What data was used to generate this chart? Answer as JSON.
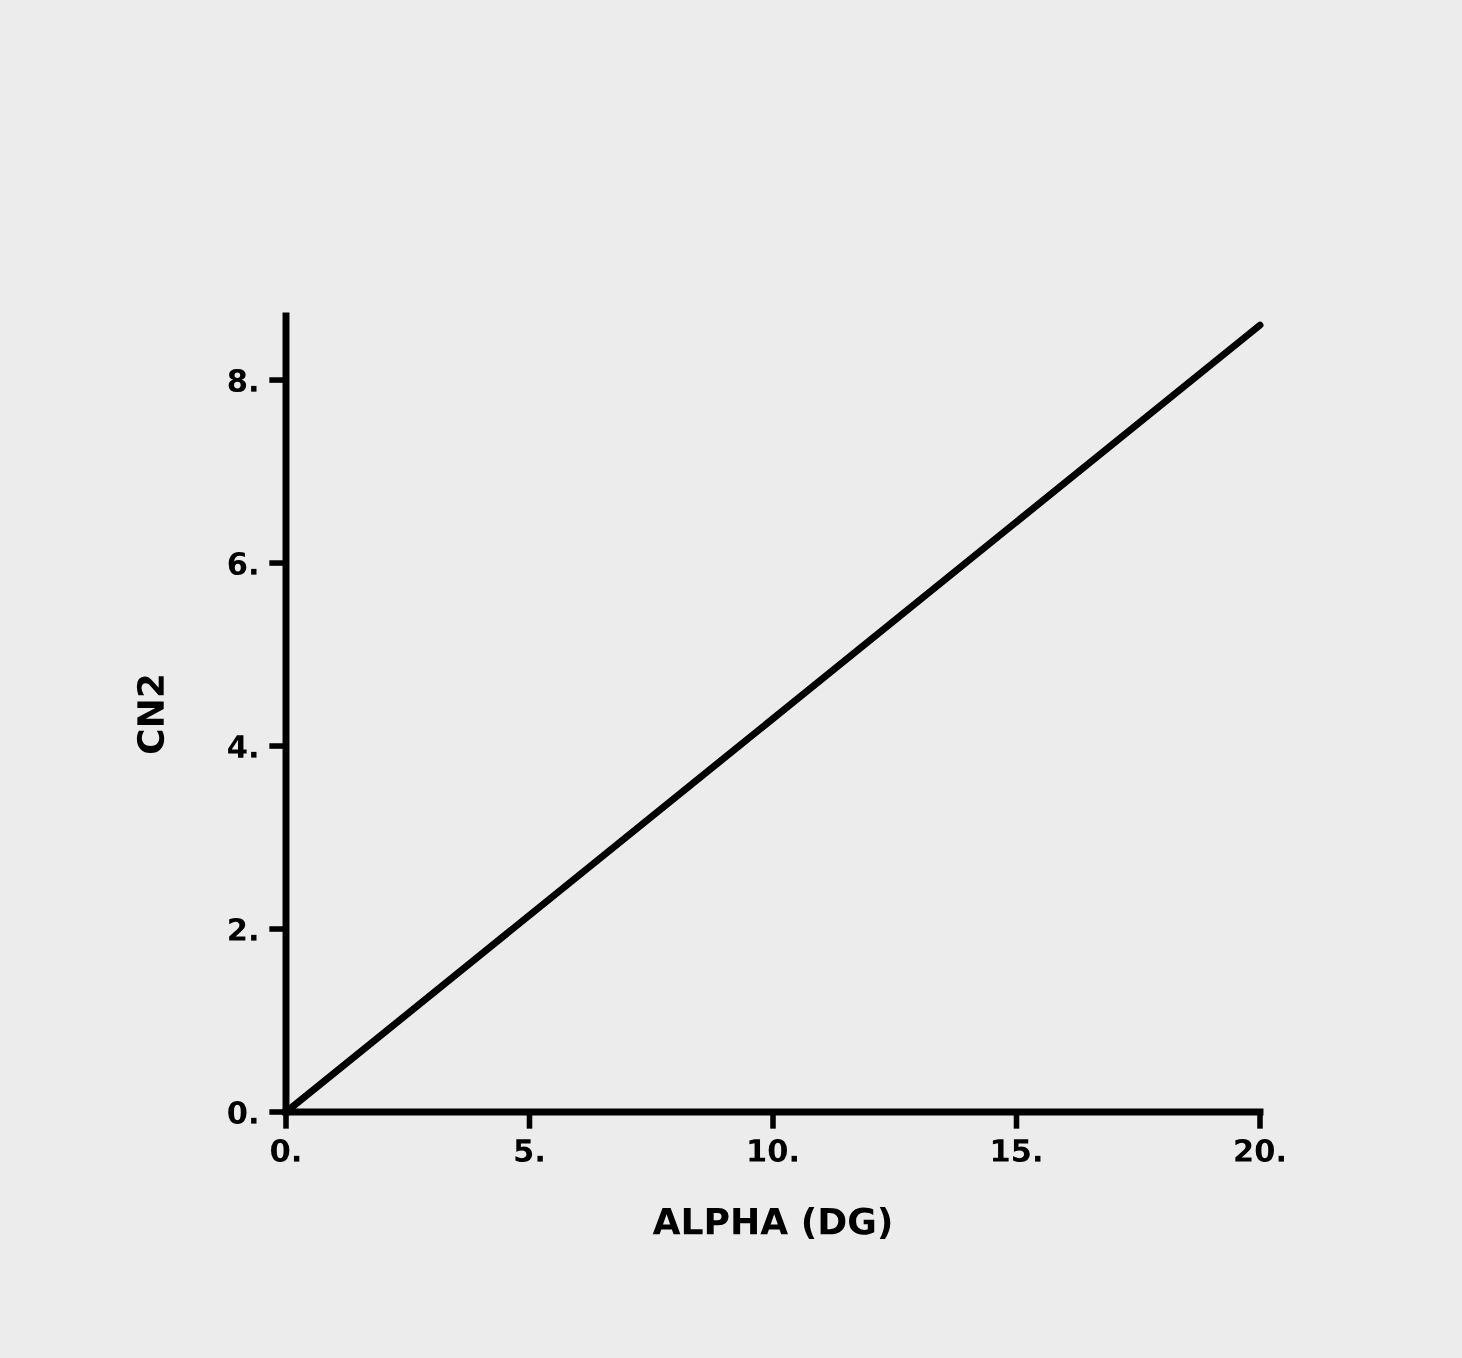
{
  "chart_data": {
    "type": "line",
    "xlabel": "ALPHA (DG)",
    "ylabel": "CN2",
    "series": [
      {
        "color": "#000000",
        "x": [
          0,
          20
        ],
        "values": [
          0,
          8.6
        ]
      }
    ],
    "xlim": [
      0,
      20
    ],
    "ylim": [
      0,
      8.7
    ],
    "xticks": [
      {
        "value": 0,
        "label": "0."
      },
      {
        "value": 5,
        "label": "5."
      },
      {
        "value": 10,
        "label": "10."
      },
      {
        "value": 15,
        "label": "15."
      },
      {
        "value": 20,
        "label": "20."
      }
    ],
    "yticks": [
      {
        "value": 0,
        "label": "0."
      },
      {
        "value": 2,
        "label": "2."
      },
      {
        "value": 4,
        "label": "4."
      },
      {
        "value": 6,
        "label": "6."
      },
      {
        "value": 8,
        "label": "8."
      }
    ],
    "grid": false,
    "marker": "none",
    "line_style": "solid"
  }
}
